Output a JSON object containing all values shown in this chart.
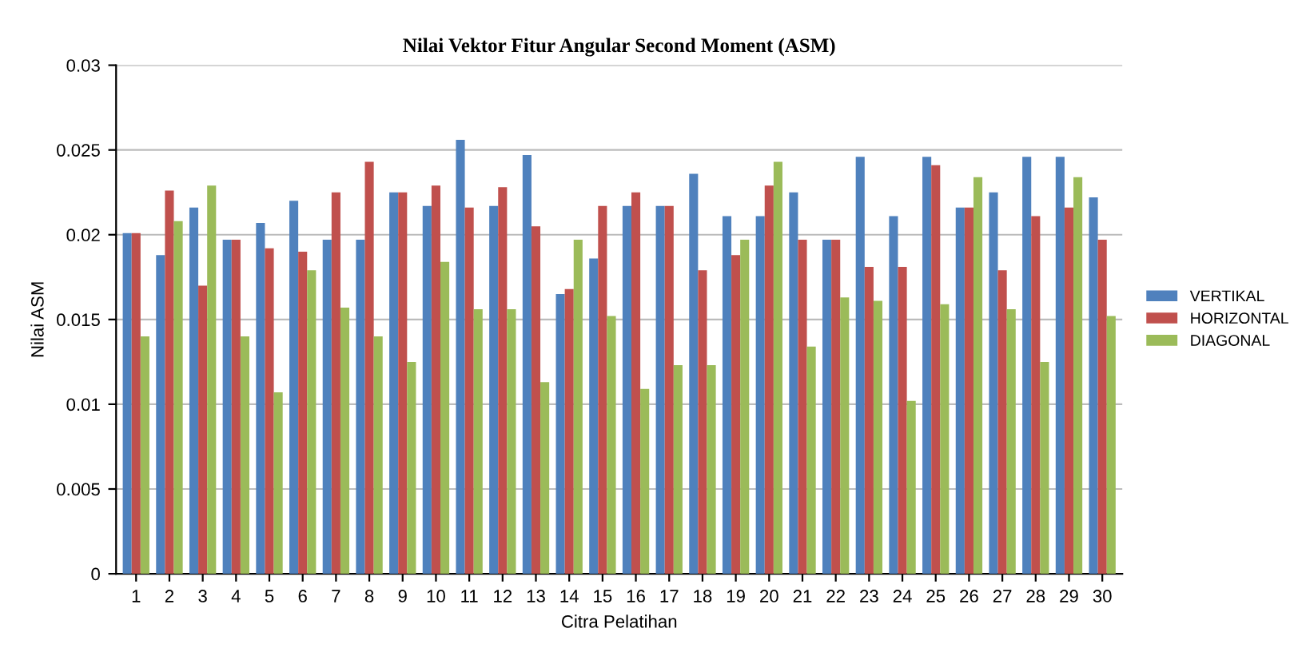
{
  "chart_data": {
    "type": "bar",
    "title": "Nilai Vektor Fitur Angular Second Moment (ASM)",
    "xlabel": "Citra Pelatihan",
    "ylabel": "Nilai ASM",
    "categories": [
      "1",
      "2",
      "3",
      "4",
      "5",
      "6",
      "7",
      "8",
      "9",
      "10",
      "11",
      "12",
      "13",
      "14",
      "15",
      "16",
      "17",
      "18",
      "19",
      "20",
      "21",
      "22",
      "23",
      "24",
      "25",
      "26",
      "27",
      "28",
      "29",
      "30"
    ],
    "series": [
      {
        "name": "VERTIKAL",
        "color": "#4f81bd",
        "values": [
          0.0201,
          0.0188,
          0.0216,
          0.0197,
          0.0207,
          0.022,
          0.0197,
          0.0197,
          0.0225,
          0.0217,
          0.0256,
          0.0217,
          0.0247,
          0.0165,
          0.0186,
          0.0217,
          0.0217,
          0.0236,
          0.0211,
          0.0211,
          0.0225,
          0.0197,
          0.0246,
          0.0211,
          0.0246,
          0.0216,
          0.0225,
          0.0246,
          0.0246,
          0.0222
        ]
      },
      {
        "name": "HORIZONTAL",
        "color": "#c0504d",
        "values": [
          0.0201,
          0.0226,
          0.017,
          0.0197,
          0.0192,
          0.019,
          0.0225,
          0.0243,
          0.0225,
          0.0229,
          0.0216,
          0.0228,
          0.0205,
          0.0168,
          0.0217,
          0.0225,
          0.0217,
          0.0179,
          0.0188,
          0.0229,
          0.0197,
          0.0197,
          0.0181,
          0.0181,
          0.0241,
          0.0216,
          0.0179,
          0.0211,
          0.0216,
          0.0197
        ]
      },
      {
        "name": "DIAGONAL",
        "color": "#9bbb59",
        "values": [
          0.014,
          0.0208,
          0.0229,
          0.014,
          0.0107,
          0.0179,
          0.0157,
          0.014,
          0.0125,
          0.0184,
          0.0156,
          0.0156,
          0.0113,
          0.0197,
          0.0152,
          0.0109,
          0.0123,
          0.0123,
          0.0197,
          0.0243,
          0.0134,
          0.0163,
          0.0161,
          0.0102,
          0.0159,
          0.0234,
          0.0156,
          0.0125,
          0.0234,
          0.0152
        ]
      }
    ],
    "ylim": [
      0,
      0.03
    ],
    "yticks": [
      0,
      0.005,
      0.01,
      0.015,
      0.02,
      0.025,
      0.03
    ],
    "grid": "y",
    "legend": "right"
  }
}
